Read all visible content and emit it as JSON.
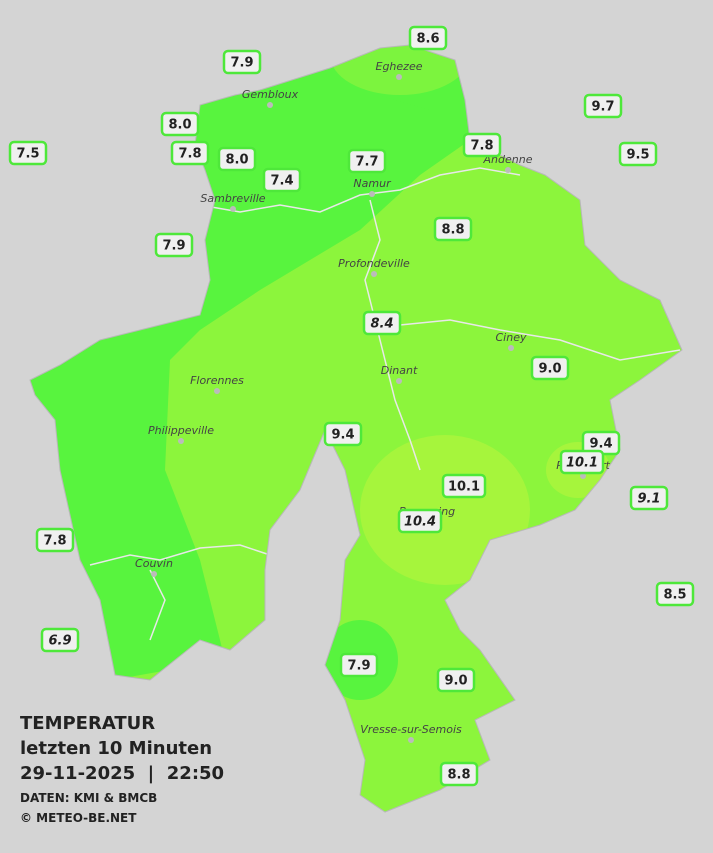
{
  "legend": {
    "title": "TEMPERATUR",
    "period": "letzten 10 Minuten",
    "datetime": "29-11-2025  |  22:50",
    "source": "DATEN: KMI & BMCB",
    "copyright": "© METEO-BE.NET"
  },
  "cities": [
    "Eghezee",
    "Gembloux",
    "Andenne",
    "Namur",
    "Sambreville",
    "Profondeville",
    "Ciney",
    "Dinant",
    "Florennes",
    "Philippeville",
    "Rochefort",
    "Beauraing",
    "Couvin",
    "Vresse-sur-Semois"
  ],
  "stations": [
    {
      "label": "8.6",
      "italic": false
    },
    {
      "label": "7.9",
      "italic": false
    },
    {
      "label": "9.7",
      "italic": false
    },
    {
      "label": "8.0",
      "italic": false
    },
    {
      "label": "7.5",
      "italic": false
    },
    {
      "label": "7.8",
      "italic": false
    },
    {
      "label": "8.0",
      "italic": false
    },
    {
      "label": "7.7",
      "italic": false
    },
    {
      "label": "7.8",
      "italic": false
    },
    {
      "label": "9.5",
      "italic": false
    },
    {
      "label": "7.4",
      "italic": false
    },
    {
      "label": "8.8",
      "italic": false
    },
    {
      "label": "7.9",
      "italic": false
    },
    {
      "label": "8.4",
      "italic": true
    },
    {
      "label": "9.0",
      "italic": false
    },
    {
      "label": "9.4",
      "italic": false
    },
    {
      "label": "9.4",
      "italic": false
    },
    {
      "label": "10.1",
      "italic": true
    },
    {
      "label": "10.1",
      "italic": false
    },
    {
      "label": "9.1",
      "italic": true
    },
    {
      "label": "10.4",
      "italic": true
    },
    {
      "label": "7.8",
      "italic": false
    },
    {
      "label": "8.5",
      "italic": false
    },
    {
      "label": "6.9",
      "italic": true
    },
    {
      "label": "7.9",
      "italic": false
    },
    {
      "label": "9.0",
      "italic": false
    },
    {
      "label": "8.8",
      "italic": false
    }
  ]
}
